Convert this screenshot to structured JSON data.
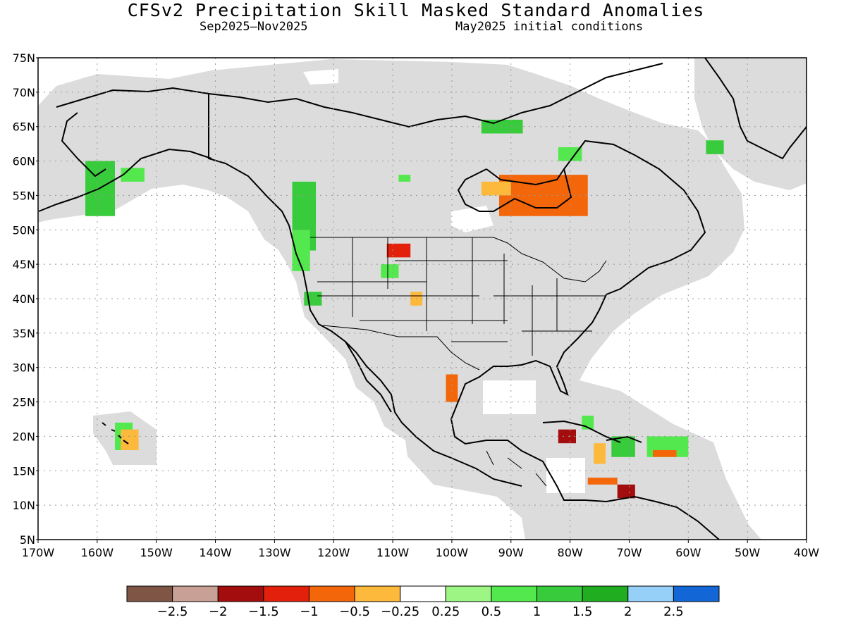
{
  "title": "CFSv2 Precipitation Skill Masked Standard Anomalies",
  "subtitle_period": "Sep2025–Nov2025",
  "subtitle_ic": "May2025 initial conditions",
  "map": {
    "lon_range": [
      -170,
      -40
    ],
    "lat_range": [
      5,
      75
    ],
    "lon_ticks": [
      -170,
      -160,
      -150,
      -140,
      -130,
      -120,
      -110,
      -100,
      -90,
      -80,
      -70,
      -60,
      -50,
      -40
    ],
    "lon_labels": [
      "170W",
      "160W",
      "150W",
      "140W",
      "130W",
      "120W",
      "110W",
      "100W",
      "90W",
      "80W",
      "70W",
      "60W",
      "50W",
      "40W"
    ],
    "lat_ticks": [
      75,
      70,
      65,
      60,
      55,
      50,
      45,
      40,
      35,
      30,
      25,
      20,
      15,
      10,
      5
    ],
    "lat_labels": [
      "75N",
      "70N",
      "65N",
      "60N",
      "55N",
      "50N",
      "45N",
      "40N",
      "35N",
      "30N",
      "25N",
      "20N",
      "15N",
      "10N",
      "5N"
    ],
    "grid": "dotted",
    "mask_color": "#dcdcdc",
    "ocean_color": "#ffffff",
    "coast_color": "#000000"
  },
  "colorbar": {
    "colors": [
      "#7f5545",
      "#c9a095",
      "#a40d0d",
      "#e2200b",
      "#f3660a",
      "#fcb93b",
      "#ffffff",
      "#9df583",
      "#53e84d",
      "#38cb3b",
      "#20ad20",
      "#96d0f8",
      "#1366d6"
    ],
    "labels": [
      "−2.5",
      "−2",
      "−1.5",
      "−1",
      "−0.5",
      "−0.25",
      "0.25",
      "0.5",
      "1",
      "1.5",
      "2",
      "2.5"
    ],
    "bounds": [
      -2.5,
      -2,
      -1.5,
      -1,
      -0.5,
      -0.25,
      0.25,
      0.5,
      1,
      1.5,
      2,
      2.5
    ]
  },
  "anomaly_patches": [
    {
      "region": "Southern Alaska",
      "lon": [
        -162,
        -157
      ],
      "lat": [
        52,
        60
      ],
      "value": 1.2
    },
    {
      "region": "Alaska coast",
      "lon": [
        -156,
        -152
      ],
      "lat": [
        57,
        59
      ],
      "value": 0.8
    },
    {
      "region": "Pacific Northwest / BC",
      "lon": [
        -127,
        -123
      ],
      "lat": [
        47,
        57
      ],
      "value": 1.2
    },
    {
      "region": "Washington coast",
      "lon": [
        -127,
        -124
      ],
      "lat": [
        44,
        50
      ],
      "value": 0.9
    },
    {
      "region": "Northern California",
      "lon": [
        -125,
        -122
      ],
      "lat": [
        39,
        41
      ],
      "value": 1.2
    },
    {
      "region": "Montana",
      "lon": [
        -111,
        -107
      ],
      "lat": [
        46,
        48
      ],
      "value": -1.1
    },
    {
      "region": "Wyoming",
      "lon": [
        -112,
        -109
      ],
      "lat": [
        43,
        45
      ],
      "value": 0.6
    },
    {
      "region": "Colorado",
      "lon": [
        -107,
        -105
      ],
      "lat": [
        39,
        41
      ],
      "value": -0.4
    },
    {
      "region": "Northern Canada",
      "lon": [
        -95,
        -88
      ],
      "lat": [
        64,
        66
      ],
      "value": 1.0
    },
    {
      "region": "Manitoba",
      "lon": [
        -109,
        -107
      ],
      "lat": [
        57,
        58
      ],
      "value": 0.9
    },
    {
      "region": "Hudson Bay south",
      "lon": [
        -92,
        -77
      ],
      "lat": [
        52,
        58
      ],
      "value": -0.9
    },
    {
      "region": "Hudson Bay west",
      "lon": [
        -95,
        -90
      ],
      "lat": [
        55,
        57
      ],
      "value": -0.4
    },
    {
      "region": "Ungava",
      "lon": [
        -82,
        -78
      ],
      "lat": [
        60,
        62
      ],
      "value": 0.8
    },
    {
      "region": "Greenland coast",
      "lon": [
        -57,
        -54
      ],
      "lat": [
        61,
        63
      ],
      "value": 1.2
    },
    {
      "region": "South Texas",
      "lon": [
        -101,
        -99
      ],
      "lat": [
        25,
        29
      ],
      "value": -0.9
    },
    {
      "region": "Hawaii",
      "lon": [
        -157,
        -154
      ],
      "lat": [
        18,
        22
      ],
      "value": 0.7
    },
    {
      "region": "Hawaii south",
      "lon": [
        -156,
        -153
      ],
      "lat": [
        18,
        21
      ],
      "value": -0.4
    },
    {
      "region": "Cuba",
      "lon": [
        -82,
        -79
      ],
      "lat": [
        19,
        21
      ],
      "value": -1.6
    },
    {
      "region": "Bahamas",
      "lon": [
        -78,
        -76
      ],
      "lat": [
        21,
        23
      ],
      "value": 0.8
    },
    {
      "region": "Hispaniola",
      "lon": [
        -73,
        -69
      ],
      "lat": [
        17,
        20
      ],
      "value": 1.0
    },
    {
      "region": "Jamaica south",
      "lon": [
        -76,
        -74
      ],
      "lat": [
        16,
        19
      ],
      "value": -0.4
    },
    {
      "region": "Lesser Antilles",
      "lon": [
        -67,
        -60
      ],
      "lat": [
        17,
        20
      ],
      "value": 0.8
    },
    {
      "region": "Caribbean east",
      "lon": [
        -66,
        -62
      ],
      "lat": [
        17,
        18
      ],
      "value": -0.7
    },
    {
      "region": "Caribbean south",
      "lon": [
        -77,
        -72
      ],
      "lat": [
        13,
        14
      ],
      "value": -0.9
    },
    {
      "region": "Colombia / Venezuela",
      "lon": [
        -72,
        -69
      ],
      "lat": [
        11,
        13
      ],
      "value": -1.6
    }
  ]
}
